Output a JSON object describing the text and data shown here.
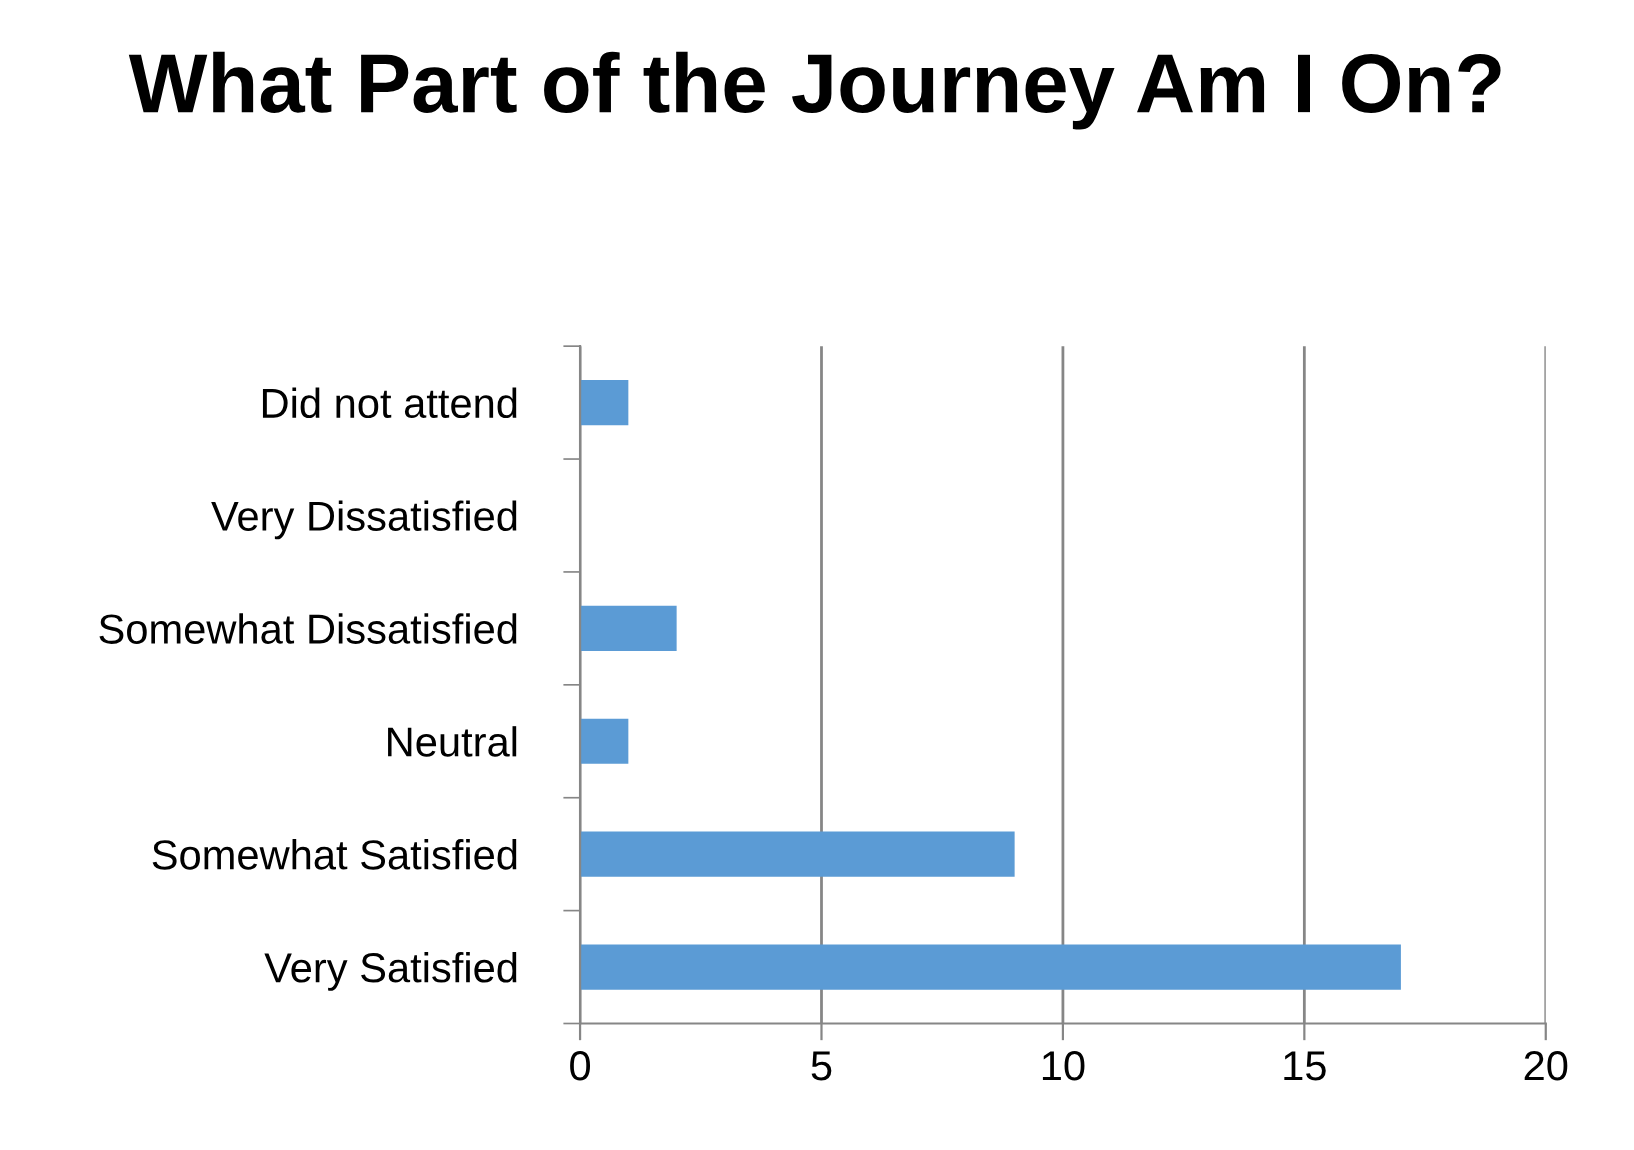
{
  "chart_data": {
    "type": "bar",
    "orientation": "horizontal",
    "title": "What Part of the Journey Am I On?",
    "categories": [
      "Did not attend",
      "Very Dissatisfied",
      "Somewhat Dissatisfied",
      "Neutral",
      "Somewhat Satisfied",
      "Very Satisfied"
    ],
    "values": [
      1,
      0,
      2,
      1,
      9,
      17
    ],
    "color": "#5b9bd5",
    "xlim": [
      0,
      20
    ],
    "xticks": [
      0,
      5,
      10,
      15,
      20
    ],
    "grid": "x"
  }
}
